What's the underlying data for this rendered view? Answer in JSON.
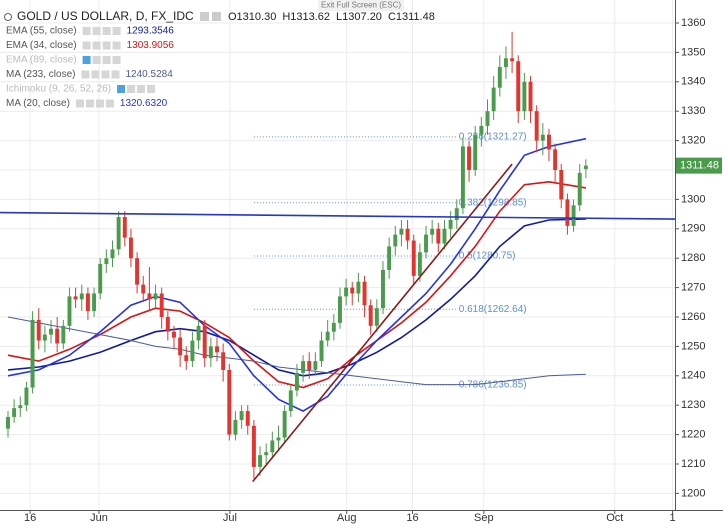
{
  "chart_data": {
    "type": "candlestick",
    "title": "GOLD / US DOLLAR, D, FX_IDC",
    "header_ohlc": [
      "O1310.30",
      "H1313.62",
      "L1307.20",
      "C1311.48"
    ],
    "exit_label": "Exit Full Screen (ESC)",
    "up_color": "#4a9c4c",
    "down_color": "#e3342f",
    "open": [
      1222,
      1226,
      1229,
      1230,
      1236,
      1259,
      1252,
      1254,
      1256,
      1251,
      1257,
      1267,
      1266,
      1268,
      1262,
      1268,
      1278,
      1280,
      1283,
      1294,
      1287,
      1280,
      1271,
      1268,
      1266,
      1268,
      1260,
      1255,
      1253,
      1247,
      1245,
      1252,
      1257,
      1246,
      1250,
      1248,
      1242,
      1220,
      1225,
      1228,
      1223,
      1209,
      1213,
      1214,
      1218,
      1219,
      1228,
      1235,
      1241,
      1245,
      1242,
      1245,
      1252,
      1255,
      1258,
      1267,
      1270,
      1268,
      1272,
      1264,
      1257,
      1263,
      1276,
      1284,
      1288,
      1290,
      1286,
      1274,
      1282,
      1288,
      1290,
      1285,
      1290,
      1293,
      1297,
      1318,
      1310,
      1322,
      1325,
      1330,
      1338,
      1345,
      1348,
      1347,
      1330,
      1340,
      1330,
      1320,
      1322,
      1317,
      1310,
      1300,
      1291,
      1298,
      1310.3
    ],
    "high": [
      1228,
      1232,
      1233,
      1238,
      1262,
      1263,
      1257,
      1259,
      1260,
      1259,
      1270,
      1270,
      1271,
      1270,
      1270,
      1280,
      1283,
      1286,
      1296,
      1296,
      1290,
      1282,
      1274,
      1277,
      1271,
      1270,
      1262,
      1257,
      1256,
      1250,
      1255,
      1259,
      1259,
      1253,
      1253,
      1251,
      1244,
      1228,
      1230,
      1230,
      1225,
      1216,
      1217,
      1221,
      1223,
      1230,
      1237,
      1244,
      1247,
      1248,
      1248,
      1255,
      1259,
      1261,
      1270,
      1273,
      1272,
      1275,
      1274,
      1266,
      1266,
      1279,
      1287,
      1291,
      1293,
      1293,
      1288,
      1285,
      1291,
      1293,
      1292,
      1293,
      1296,
      1300,
      1321,
      1320,
      1325,
      1328,
      1334,
      1342,
      1349,
      1352,
      1357,
      1349,
      1343,
      1342,
      1332,
      1326,
      1324,
      1319,
      1312,
      1302,
      1300,
      1312,
      1313.62
    ],
    "low": [
      1219,
      1224,
      1226,
      1228,
      1234,
      1249,
      1248,
      1251,
      1248,
      1249,
      1255,
      1263,
      1262,
      1259,
      1260,
      1266,
      1275,
      1277,
      1281,
      1284,
      1277,
      1268,
      1265,
      1262,
      1263,
      1256,
      1252,
      1249,
      1243,
      1242,
      1243,
      1249,
      1243,
      1243,
      1245,
      1238,
      1218,
      1218,
      1222,
      1220,
      1205,
      1206,
      1210,
      1212,
      1215,
      1217,
      1226,
      1233,
      1238,
      1239,
      1240,
      1243,
      1250,
      1252,
      1256,
      1264,
      1264,
      1265,
      1260,
      1254,
      1255,
      1261,
      1273,
      1281,
      1284,
      1283,
      1271,
      1272,
      1280,
      1285,
      1282,
      1283,
      1287,
      1290,
      1295,
      1306,
      1308,
      1318,
      1322,
      1327,
      1335,
      1341,
      1343,
      1326,
      1327,
      1326,
      1316,
      1315,
      1313,
      1306,
      1297,
      1288,
      1289,
      1296,
      1307.2
    ],
    "close": [
      1226,
      1229,
      1230,
      1236,
      1259,
      1252,
      1254,
      1256,
      1251,
      1257,
      1267,
      1266,
      1268,
      1262,
      1268,
      1278,
      1280,
      1283,
      1294,
      1287,
      1280,
      1271,
      1268,
      1266,
      1268,
      1260,
      1255,
      1253,
      1247,
      1245,
      1252,
      1257,
      1246,
      1250,
      1248,
      1242,
      1220,
      1225,
      1228,
      1223,
      1209,
      1213,
      1214,
      1218,
      1219,
      1228,
      1235,
      1241,
      1245,
      1242,
      1245,
      1252,
      1255,
      1258,
      1267,
      1270,
      1268,
      1272,
      1264,
      1257,
      1263,
      1276,
      1284,
      1288,
      1290,
      1286,
      1274,
      1282,
      1288,
      1290,
      1285,
      1290,
      1293,
      1297,
      1318,
      1310,
      1322,
      1325,
      1330,
      1338,
      1345,
      1348,
      1347,
      1330,
      1340,
      1330,
      1320,
      1322,
      1317,
      1310,
      1300,
      1291,
      1298,
      1309,
      1311.48
    ],
    "indicators": [
      {
        "name": "EMA (55, close)",
        "color": "#101c9c",
        "value_label": "1293.3546",
        "x": [
          0,
          5,
          10,
          15,
          20,
          24,
          28,
          32,
          36,
          40,
          44,
          48,
          52,
          56,
          60,
          64,
          68,
          72,
          76,
          80,
          84,
          88,
          94
        ],
        "values": [
          1242,
          1243,
          1245,
          1248,
          1252,
          1255,
          1256,
          1255,
          1252,
          1247,
          1242,
          1240,
          1241,
          1244,
          1248,
          1253,
          1259,
          1266,
          1274,
          1284,
          1291,
          1293,
          1293.3546
        ]
      },
      {
        "name": "EMA (34, close)",
        "color": "#e01010",
        "value_label": "1303.9056",
        "x": [
          0,
          5,
          10,
          15,
          20,
          24,
          28,
          32,
          36,
          40,
          44,
          48,
          52,
          56,
          60,
          64,
          68,
          72,
          76,
          80,
          84,
          88,
          94
        ],
        "values": [
          1247,
          1245,
          1249,
          1254,
          1260,
          1263,
          1262,
          1258,
          1253,
          1245,
          1238,
          1236,
          1239,
          1246,
          1252,
          1258,
          1265,
          1274,
          1284,
          1296,
          1305,
          1306,
          1303.9056
        ]
      },
      {
        "name": "EMA (89, close)",
        "muted": true
      },
      {
        "name": "MA (233, close)",
        "color": "#4a5c9b",
        "value_label": "1240.5284",
        "x": [
          0,
          5,
          10,
          15,
          20,
          24,
          28,
          32,
          36,
          40,
          44,
          48,
          52,
          56,
          60,
          64,
          68,
          72,
          76,
          80,
          84,
          88,
          94
        ],
        "values": [
          1260,
          1258,
          1256,
          1254,
          1252,
          1250,
          1249,
          1247,
          1246,
          1245,
          1243,
          1242,
          1241,
          1240,
          1239,
          1238,
          1237,
          1237,
          1237,
          1238,
          1239,
          1240,
          1240.5284
        ]
      },
      {
        "name": "Ichimoku (9, 26, 52, 26)",
        "muted": true
      },
      {
        "name": "MA (20, close)",
        "color": "#2233e8",
        "value_label": "1320.6320",
        "x": [
          0,
          5,
          10,
          15,
          20,
          24,
          28,
          32,
          36,
          40,
          44,
          48,
          52,
          56,
          60,
          64,
          68,
          72,
          76,
          80,
          84,
          88,
          94
        ],
        "values": [
          1240,
          1242,
          1247,
          1255,
          1264,
          1267,
          1265,
          1257,
          1251,
          1240,
          1232,
          1228,
          1233,
          1243,
          1252,
          1260,
          1268,
          1278,
          1290,
          1303,
          1315,
          1318,
          1320.632
        ]
      }
    ],
    "lines": [
      {
        "color": "#8b1a1a",
        "x": [
          39.8,
          82
        ],
        "values": [
          1204,
          1312
        ]
      },
      {
        "color": "#2636c8",
        "x": [
          -1.3,
          108.5
        ],
        "values": [
          1295.5,
          1293.3
        ]
      }
    ],
    "fib_range": [
      40,
      73
    ],
    "fib": [
      {
        "label": "0.236(1321.27)",
        "value": 1321.27
      },
      {
        "label": "0.382(1298.85)",
        "value": 1298.85
      },
      {
        "label": "0.5(1280.75)",
        "value": 1280.75
      },
      {
        "label": "0.618(1262.64)",
        "value": 1262.64
      },
      {
        "label": "0.786(1236.85)",
        "value": 1236.85
      }
    ],
    "fib_color": "#5b8fd6",
    "ylim": [
      1194.35,
      1367.82
    ],
    "yticks": [
      1200,
      1210,
      1220,
      1230,
      1240,
      1250,
      1260,
      1270,
      1280,
      1290,
      1300,
      1310,
      1320,
      1330,
      1340,
      1350,
      1360
    ],
    "xlim": [
      -1.3,
      108.5
    ],
    "xticks": [
      {
        "value": 3.6,
        "label": "16"
      },
      {
        "value": 14.8,
        "label": "Jun"
      },
      {
        "value": 36.1,
        "label": "Jul"
      },
      {
        "value": 55.1,
        "label": "Aug"
      },
      {
        "value": 65.8,
        "label": "16"
      },
      {
        "value": 77.4,
        "label": "Sep"
      },
      {
        "value": 98.7,
        "label": "Oct"
      },
      {
        "value": 108.1,
        "label": "1"
      }
    ],
    "grid": true
  }
}
